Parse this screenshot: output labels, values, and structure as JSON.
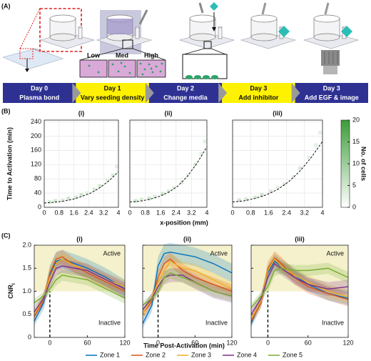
{
  "panel_a": {
    "label": "(A)",
    "densities": [
      "Low",
      "Med",
      "High"
    ],
    "timeline": [
      {
        "day": "Day 0",
        "step": "Plasma bond",
        "color": "#2e3192",
        "text_color": "#ffffff"
      },
      {
        "day": "Day 1",
        "step": "Vary seeding density",
        "color": "#fff200",
        "text_color": "#111111"
      },
      {
        "day": "Day 2",
        "step": "Change media",
        "color": "#2e3192",
        "text_color": "#ffffff"
      },
      {
        "day": "Day 3",
        "step": "Add inhibitor",
        "color": "#fff200",
        "text_color": "#111111"
      },
      {
        "day": "Day 3",
        "step": "Add EGF & image",
        "color": "#2e3192",
        "text_color": "#ffffff"
      }
    ]
  },
  "panel_b": {
    "label": "(B)",
    "ylabel": "Time to Activation (min)",
    "xlabel": "x-position (mm)",
    "colorbar": {
      "label": "No. of cells",
      "zlim": [
        0,
        20
      ],
      "ticks": [
        0,
        5,
        10,
        15,
        20
      ],
      "colors": [
        "#ffffff",
        "#3c9c38"
      ]
    }
  },
  "panel_c": {
    "label": "(C)",
    "ylabel": "CNR",
    "ylabel_sub": "i",
    "xlabel": "Time Post-Activation (min)"
  },
  "chart_data": [
    {
      "type": "scatter",
      "title": "(i)",
      "xlim": [
        0,
        4
      ],
      "ylim": [
        0,
        245
      ],
      "xticks": [
        0,
        0.8,
        1.6,
        2.4,
        3.2,
        4
      ],
      "yticks": [
        0,
        40,
        80,
        120,
        160,
        200,
        240
      ],
      "grid": true,
      "x": [
        0.3,
        0.6,
        1.0,
        1.3,
        1.7,
        2.0,
        2.3,
        2.7,
        3.0,
        3.4,
        3.7,
        3.9
      ],
      "values": [
        15,
        18,
        20,
        25,
        28,
        35,
        40,
        50,
        60,
        75,
        90,
        115
      ],
      "counts": [
        4,
        5,
        4,
        5,
        4,
        5,
        3,
        4,
        5,
        3,
        4,
        3
      ],
      "fit": {
        "x": [
          0,
          0.5,
          1,
          1.5,
          2,
          2.5,
          3,
          3.5,
          4
        ],
        "values": [
          12,
          14,
          17,
          22,
          30,
          40,
          55,
          75,
          100
        ]
      }
    },
    {
      "type": "scatter",
      "title": "(ii)",
      "xlim": [
        0,
        4
      ],
      "ylim": [
        0,
        245
      ],
      "xticks": [
        0,
        0.8,
        1.6,
        2.4,
        3.2,
        4
      ],
      "yticks": [
        0,
        40,
        80,
        120,
        160,
        200,
        240
      ],
      "grid": true,
      "ytick_labels": false,
      "x": [
        0.3,
        0.6,
        1.0,
        1.3,
        1.7,
        2.0,
        2.3,
        2.7,
        3.0,
        3.4,
        3.7,
        3.9
      ],
      "values": [
        18,
        22,
        25,
        30,
        38,
        45,
        55,
        70,
        90,
        120,
        150,
        185
      ],
      "counts": [
        5,
        4,
        5,
        4,
        5,
        4,
        3,
        4,
        3,
        4,
        3,
        3
      ],
      "fit": {
        "x": [
          0,
          0.5,
          1,
          1.5,
          2,
          2.5,
          3,
          3.5,
          4
        ],
        "values": [
          15,
          17,
          22,
          30,
          42,
          60,
          88,
          125,
          170
        ]
      }
    },
    {
      "type": "scatter",
      "title": "(iii)",
      "xlim": [
        0,
        4
      ],
      "ylim": [
        0,
        245
      ],
      "xticks": [
        0,
        0.8,
        1.6,
        2.4,
        3.2,
        4
      ],
      "yticks": [
        0,
        40,
        80,
        120,
        160,
        200,
        240
      ],
      "grid": true,
      "ytick_labels": false,
      "x": [
        0.3,
        0.6,
        1.0,
        1.3,
        1.7,
        2.0,
        2.3,
        2.7,
        3.0,
        3.4,
        3.7,
        3.9
      ],
      "values": [
        20,
        22,
        28,
        35,
        45,
        55,
        65,
        85,
        110,
        140,
        175,
        210
      ],
      "counts": [
        5,
        5,
        4,
        5,
        4,
        3,
        4,
        3,
        4,
        3,
        3,
        3
      ],
      "fit": {
        "x": [
          0,
          0.5,
          1,
          1.5,
          2,
          2.5,
          3,
          3.5,
          4
        ],
        "values": [
          15,
          18,
          25,
          35,
          50,
          72,
          102,
          140,
          185
        ]
      }
    },
    {
      "type": "line",
      "title": "(i)",
      "xlim": [
        -25,
        120
      ],
      "ylim": [
        0,
        2
      ],
      "xticks": [
        0,
        60,
        120
      ],
      "yticks": [
        0,
        0.5,
        {
          "value": 1,
          "label": "1.0"
        },
        1.5,
        {
          "value": 2,
          "label": "2.0"
        }
      ],
      "threshold": 1,
      "onset": 0,
      "shade_color": "#f4f1cc",
      "annotations": [
        "Active",
        "Inactive"
      ],
      "x": [
        -25,
        -10,
        0,
        10,
        20,
        40,
        60,
        90,
        120
      ],
      "series": [
        {
          "name": "Zone 1",
          "color": "#0072bd",
          "values": [
            0.35,
            0.75,
            1.35,
            1.65,
            1.7,
            1.6,
            1.5,
            1.3,
            1.05
          ],
          "error": [
            0.1,
            0.15,
            0.2,
            0.2,
            0.2,
            0.2,
            0.2,
            0.2,
            0.2
          ]
        },
        {
          "name": "Zone 2",
          "color": "#d95319",
          "values": [
            0.45,
            0.8,
            1.4,
            1.7,
            1.75,
            1.55,
            1.4,
            1.2,
            1.0
          ],
          "error": [
            0.1,
            0.12,
            0.15,
            0.15,
            0.15,
            0.15,
            0.15,
            0.15,
            0.15
          ]
        },
        {
          "name": "Zone 3",
          "color": "#edb120",
          "values": [
            0.5,
            0.85,
            1.3,
            1.6,
            1.7,
            1.55,
            1.45,
            1.25,
            1.1
          ],
          "error": [
            0.1,
            0.12,
            0.15,
            0.15,
            0.15,
            0.15,
            0.15,
            0.15,
            0.15
          ]
        },
        {
          "name": "Zone 4",
          "color": "#7e2f8e",
          "values": [
            0.55,
            0.85,
            1.2,
            1.5,
            1.55,
            1.5,
            1.45,
            1.25,
            1.05
          ],
          "error": [
            0.1,
            0.12,
            0.15,
            0.15,
            0.15,
            0.15,
            0.15,
            0.15,
            0.15
          ]
        },
        {
          "name": "Zone 5",
          "color": "#77ac30",
          "values": [
            0.75,
            0.9,
            1.05,
            1.25,
            1.35,
            1.3,
            1.25,
            1.05,
            0.85
          ],
          "error": [
            0.08,
            0.1,
            0.12,
            0.12,
            0.12,
            0.12,
            0.12,
            0.12,
            0.12
          ]
        }
      ]
    },
    {
      "type": "line",
      "title": "(ii)",
      "xlim": [
        -25,
        120
      ],
      "ylim": [
        0,
        2
      ],
      "xticks": [
        0,
        60,
        120
      ],
      "yticks": [
        0,
        0.5,
        1,
        1.5,
        2
      ],
      "ytick_labels": false,
      "threshold": 1,
      "onset": 0,
      "shade_color": "#f4f1cc",
      "annotations": [
        "Active",
        "Inactive"
      ],
      "x": [
        -25,
        -10,
        0,
        10,
        20,
        40,
        60,
        90,
        120
      ],
      "series": [
        {
          "color": "#0072bd",
          "values": [
            0.3,
            0.7,
            1.55,
            1.82,
            1.85,
            1.8,
            1.75,
            1.6,
            1.4
          ],
          "error": [
            0.1,
            0.15,
            0.2,
            0.2,
            0.2,
            0.2,
            0.2,
            0.2,
            0.2
          ]
        },
        {
          "color": "#d95319",
          "values": [
            0.5,
            0.8,
            1.3,
            1.6,
            1.7,
            1.45,
            1.3,
            1.15,
            1.0
          ],
          "error": [
            0.1,
            0.12,
            0.15,
            0.15,
            0.15,
            0.15,
            0.15,
            0.15,
            0.15
          ]
        },
        {
          "color": "#edb120",
          "values": [
            0.5,
            0.85,
            1.2,
            1.45,
            1.65,
            1.5,
            1.45,
            1.25,
            1.05
          ],
          "error": [
            0.1,
            0.12,
            0.15,
            0.15,
            0.15,
            0.15,
            0.15,
            0.15,
            0.15
          ]
        },
        {
          "color": "#7e2f8e",
          "values": [
            0.6,
            0.85,
            1.1,
            1.3,
            1.35,
            1.35,
            1.2,
            1.0,
            0.9
          ],
          "error": [
            0.1,
            0.12,
            0.15,
            0.15,
            0.15,
            0.15,
            0.15,
            0.15,
            0.15
          ]
        },
        {
          "color": "#77ac30",
          "values": [
            0.7,
            0.85,
            1.0,
            1.3,
            1.4,
            1.3,
            1.2,
            1.0,
            0.9
          ],
          "error": [
            0.08,
            0.1,
            0.12,
            0.12,
            0.12,
            0.12,
            0.12,
            0.12,
            0.12
          ]
        }
      ]
    },
    {
      "type": "line",
      "title": "(iii)",
      "xlim": [
        -25,
        120
      ],
      "ylim": [
        0,
        2
      ],
      "xticks": [
        0,
        60,
        120
      ],
      "yticks": [
        0,
        0.5,
        1,
        1.5,
        2
      ],
      "ytick_labels": false,
      "threshold": 1,
      "onset": 0,
      "shade_color": "#f4f1cc",
      "annotations": [
        "Active",
        "Inactive"
      ],
      "x": [
        -25,
        -10,
        0,
        10,
        20,
        40,
        60,
        90,
        120
      ],
      "series": [
        {
          "color": "#0072bd",
          "values": [
            0.3,
            0.8,
            1.4,
            1.65,
            1.55,
            1.35,
            1.15,
            0.95,
            0.85
          ],
          "error": [
            0.1,
            0.12,
            0.15,
            0.15,
            0.15,
            0.15,
            0.15,
            0.15,
            0.15
          ]
        },
        {
          "color": "#d95319",
          "values": [
            0.35,
            0.75,
            1.5,
            1.72,
            1.6,
            1.3,
            1.1,
            0.95,
            0.82
          ],
          "error": [
            0.1,
            0.12,
            0.15,
            0.15,
            0.15,
            0.15,
            0.15,
            0.15,
            0.15
          ]
        },
        {
          "color": "#edb120",
          "values": [
            0.4,
            0.8,
            1.45,
            1.7,
            1.55,
            1.35,
            1.2,
            1.0,
            0.88
          ],
          "error": [
            0.1,
            0.12,
            0.15,
            0.15,
            0.15,
            0.15,
            0.15,
            0.15,
            0.15
          ]
        },
        {
          "color": "#7e2f8e",
          "values": [
            0.5,
            0.85,
            1.3,
            1.6,
            1.5,
            1.3,
            1.15,
            1.05,
            1.1
          ],
          "error": [
            0.1,
            0.12,
            0.15,
            0.15,
            0.15,
            0.15,
            0.15,
            0.15,
            0.15
          ]
        },
        {
          "color": "#77ac30",
          "values": [
            0.65,
            0.9,
            1.1,
            1.45,
            1.5,
            1.45,
            1.45,
            1.5,
            1.3
          ],
          "error": [
            0.08,
            0.1,
            0.12,
            0.12,
            0.12,
            0.12,
            0.12,
            0.12,
            0.12
          ]
        }
      ]
    }
  ]
}
